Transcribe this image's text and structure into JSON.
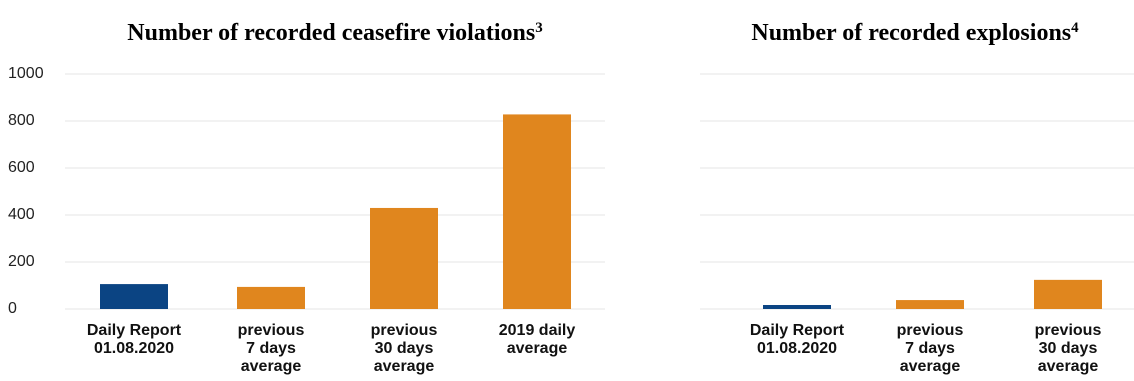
{
  "chart_data": [
    {
      "type": "bar",
      "title": "Number of recorded ceasefire violations",
      "title_superscript": "3",
      "categories": [
        [
          "Daily Report",
          "01.08.2020"
        ],
        [
          "previous",
          "7 days",
          "average"
        ],
        [
          "previous",
          "30 days",
          "average"
        ],
        [
          "2019 daily",
          "average"
        ]
      ],
      "values": [
        106,
        94,
        430,
        828
      ],
      "colors": [
        "#0b4483",
        "#e0861e",
        "#e0861e",
        "#e0861e"
      ],
      "ylim": [
        0,
        1000
      ],
      "yticks": [
        0,
        200,
        400,
        600,
        800,
        1000
      ],
      "grid": true,
      "show_y_labels": true
    },
    {
      "type": "bar",
      "title": "Number of recorded explosions",
      "title_superscript": "4",
      "categories": [
        [
          "Daily Report",
          "01.08.2020"
        ],
        [
          "previous",
          "7 days",
          "average"
        ],
        [
          "previous",
          "30 days",
          "average"
        ]
      ],
      "values": [
        17,
        38,
        124
      ],
      "colors": [
        "#0b4483",
        "#e0861e",
        "#e0861e"
      ],
      "ylim": [
        0,
        1000
      ],
      "yticks": [
        0,
        200,
        400,
        600,
        800,
        1000
      ],
      "grid": true,
      "show_y_labels": false
    }
  ]
}
